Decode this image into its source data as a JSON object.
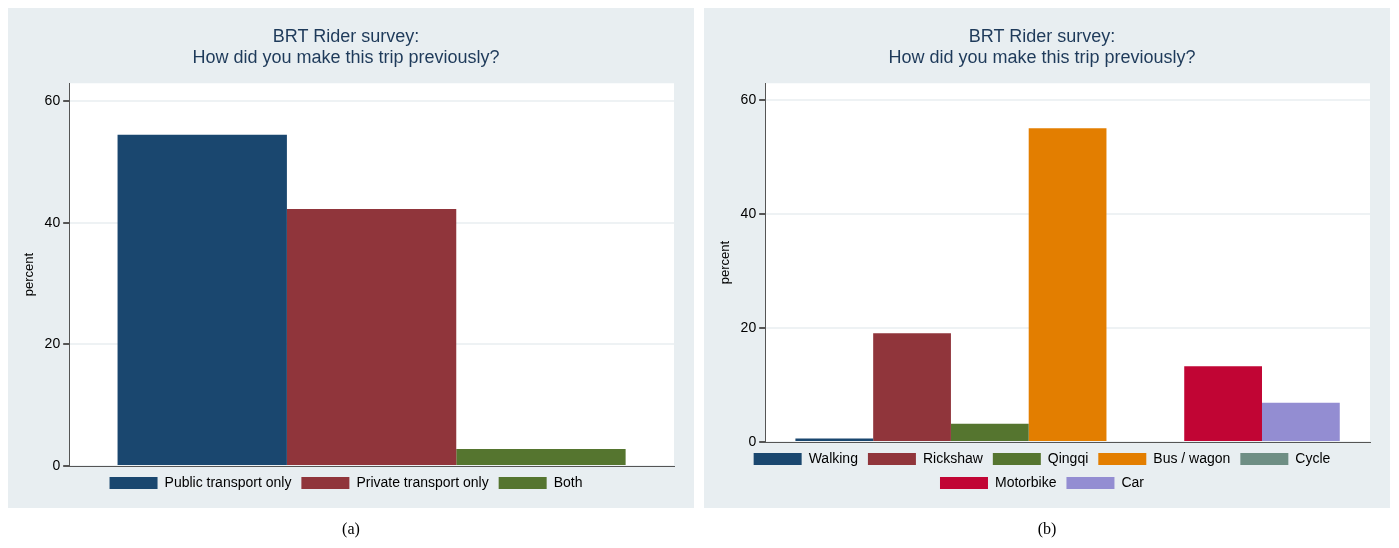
{
  "chart_data": [
    {
      "type": "bar",
      "title": "BRT Rider survey:",
      "subtitle": "How did you make this trip previously?",
      "ylabel": "percent",
      "categories": [
        null
      ],
      "series": [
        {
          "name": "Public transport only",
          "color": "#1a476f",
          "values": [
            54.5
          ]
        },
        {
          "name": "Private transport only",
          "color": "#90353b",
          "values": [
            42.3
          ]
        },
        {
          "name": "Both",
          "color": "#55752f",
          "values": [
            2.8
          ]
        }
      ],
      "ylim": [
        0,
        63
      ],
      "yticks": [
        0,
        20,
        40,
        60
      ],
      "grid": "y",
      "legend": "bottom",
      "tick_labels": "y",
      "annotations": [
        "(a)"
      ]
    },
    {
      "type": "bar",
      "title": "BRT Rider survey:",
      "subtitle": "How did you make this trip previously?",
      "ylabel": "percent",
      "categories": [
        null
      ],
      "series": [
        {
          "name": "Walking",
          "color": "#1a476f",
          "values": [
            0.6
          ]
        },
        {
          "name": "Rickshaw",
          "color": "#90353b",
          "values": [
            19.1
          ]
        },
        {
          "name": "Qingqi",
          "color": "#55752f",
          "values": [
            3.2
          ]
        },
        {
          "name": "Bus / wagon",
          "color": "#e37e00",
          "values": [
            55.1
          ]
        },
        {
          "name": "Cycle",
          "color": "#6e8e84",
          "values": [
            0
          ]
        },
        {
          "name": "Motorbike",
          "color": "#c10534",
          "values": [
            13.3
          ]
        },
        {
          "name": "Car",
          "color": "#938dd2",
          "values": [
            6.9
          ]
        }
      ],
      "ylim": [
        0,
        63
      ],
      "yticks": [
        0,
        20,
        40,
        60
      ],
      "grid": "y",
      "legend": "bottom",
      "tick_labels": "y",
      "annotations": [
        "(b)"
      ]
    }
  ]
}
